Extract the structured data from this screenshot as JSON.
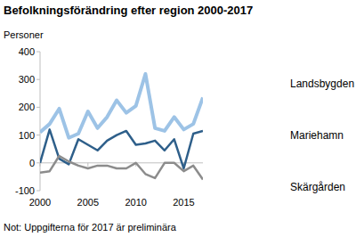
{
  "chart_data": {
    "type": "line",
    "title": "Befolkningsförändring efter region 2000-2017",
    "y_label": "Personer",
    "note": "Not: Uppgifterna för 2017 är preliminära",
    "x": [
      2000,
      2001,
      2002,
      2003,
      2004,
      2005,
      2006,
      2007,
      2008,
      2009,
      2010,
      2011,
      2012,
      2013,
      2014,
      2015,
      2016,
      2017
    ],
    "xlim": [
      2000,
      2017
    ],
    "xticks": [
      2000,
      2005,
      2010,
      2015
    ],
    "ylim": [
      -100,
      400
    ],
    "yticks": [
      -100,
      0,
      100,
      200,
      300,
      400
    ],
    "grid": false,
    "legend": "right",
    "series": [
      {
        "name": "Landsbygden",
        "color": "#9dc3e6",
        "values": [
          110,
          140,
          195,
          90,
          105,
          185,
          125,
          165,
          225,
          180,
          205,
          320,
          125,
          115,
          165,
          120,
          140,
          235
        ]
      },
      {
        "name": "Mariehamn",
        "color": "#2e5f8a",
        "values": [
          0,
          120,
          15,
          -5,
          85,
          65,
          45,
          80,
          100,
          115,
          65,
          70,
          80,
          45,
          85,
          -20,
          105,
          115
        ]
      },
      {
        "name": "Skärgården",
        "color": "#8c8c8c",
        "values": [
          -35,
          -30,
          25,
          5,
          -10,
          -20,
          -10,
          -10,
          -20,
          -20,
          0,
          -40,
          -55,
          0,
          0,
          -30,
          -10,
          -60
        ]
      }
    ]
  }
}
